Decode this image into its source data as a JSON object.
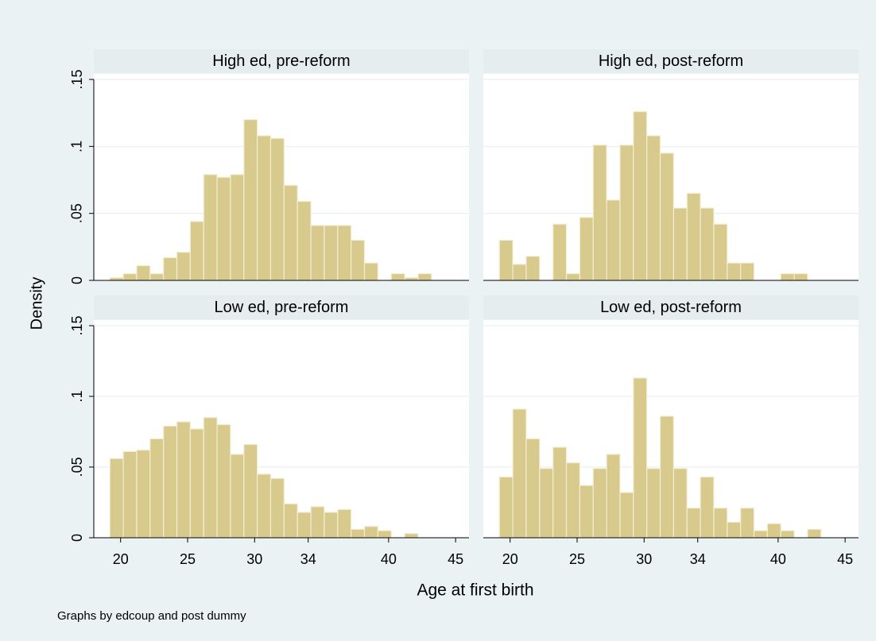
{
  "y_label": "Density",
  "x_label": "Age at first birth",
  "note": "Graphs by edcoup and post dummy",
  "chart_data": [
    {
      "type": "histogram",
      "title": "High ed, pre-reform",
      "color": "#d8c98d",
      "grid": true,
      "bins": [
        19.2,
        20.2,
        21.2,
        22.2,
        23.2,
        24.2,
        25.2,
        26.2,
        27.2,
        28.2,
        29.2,
        30.2,
        31.2,
        32.2,
        33.2,
        34.2,
        35.2,
        36.2,
        37.2,
        38.2,
        39.2,
        40.2,
        41.2,
        42.2,
        43.2
      ],
      "values": [
        0.002,
        0.005,
        0.011,
        0.005,
        0.017,
        0.021,
        0.044,
        0.079,
        0.077,
        0.079,
        0.12,
        0.108,
        0.106,
        0.071,
        0.059,
        0.041,
        0.041,
        0.041,
        0.03,
        0.013,
        0,
        0.005,
        0.002,
        0.005
      ],
      "xlim": [
        18,
        46
      ],
      "ylim": [
        0,
        0.15
      ],
      "yticks": [
        0,
        {
          "value": 0.05,
          "label": ".05"
        },
        {
          "value": 0.1,
          "label": ".1"
        },
        {
          "value": 0.15,
          "label": ".15"
        }
      ]
    },
    {
      "type": "histogram",
      "title": "High ed, post-reform",
      "color": "#d8c98d",
      "grid": true,
      "bins": [
        19.2,
        20.2,
        21.2,
        22.2,
        23.2,
        24.2,
        25.2,
        26.2,
        27.2,
        28.2,
        29.2,
        30.2,
        31.2,
        32.2,
        33.2,
        34.2,
        35.2,
        36.2,
        37.2,
        38.2,
        39.2,
        40.2,
        41.2,
        42.2,
        43.2
      ],
      "values": [
        0.03,
        0.012,
        0.018,
        0,
        0.042,
        0.005,
        0.047,
        0.101,
        0.06,
        0.101,
        0.126,
        0.108,
        0.095,
        0.054,
        0.065,
        0.054,
        0.042,
        0.013,
        0.013,
        0,
        0,
        0.005,
        0.005,
        0
      ],
      "xlim": [
        18,
        46
      ],
      "ylim": [
        0,
        0.15
      ],
      "yticks": [
        0,
        0.05,
        0.1,
        0.15
      ]
    },
    {
      "type": "histogram",
      "title": "Low ed, pre-reform",
      "color": "#d8c98d",
      "grid": true,
      "bins": [
        19.2,
        20.2,
        21.2,
        22.2,
        23.2,
        24.2,
        25.2,
        26.2,
        27.2,
        28.2,
        29.2,
        30.2,
        31.2,
        32.2,
        33.2,
        34.2,
        35.2,
        36.2,
        37.2,
        38.2,
        39.2,
        40.2,
        41.2,
        42.2,
        43.2
      ],
      "values": [
        0.056,
        0.061,
        0.062,
        0.07,
        0.079,
        0.082,
        0.077,
        0.085,
        0.08,
        0.059,
        0.066,
        0.045,
        0.042,
        0.024,
        0.018,
        0.022,
        0.018,
        0.02,
        0.006,
        0.008,
        0.005,
        0,
        0.003,
        0
      ],
      "xlim": [
        18,
        46
      ],
      "ylim": [
        0,
        0.15
      ],
      "yticks": [
        0,
        {
          "value": 0.05,
          "label": ".05"
        },
        {
          "value": 0.1,
          "label": ".1"
        },
        {
          "value": 0.15,
          "label": ".15"
        }
      ],
      "xticks": [
        20,
        25,
        30,
        34,
        40,
        45
      ]
    },
    {
      "type": "histogram",
      "title": "Low ed, post-reform",
      "color": "#d8c98d",
      "grid": true,
      "bins": [
        19.2,
        20.2,
        21.2,
        22.2,
        23.2,
        24.2,
        25.2,
        26.2,
        27.2,
        28.2,
        29.2,
        30.2,
        31.2,
        32.2,
        33.2,
        34.2,
        35.2,
        36.2,
        37.2,
        38.2,
        39.2,
        40.2,
        41.2,
        42.2,
        43.2
      ],
      "values": [
        0.043,
        0.091,
        0.07,
        0.049,
        0.064,
        0.053,
        0.037,
        0.049,
        0.059,
        0.032,
        0.113,
        0.049,
        0.086,
        0.049,
        0.021,
        0.043,
        0.021,
        0.011,
        0.021,
        0.005,
        0.01,
        0.005,
        0,
        0.006
      ],
      "xlim": [
        18,
        46
      ],
      "ylim": [
        0,
        0.15
      ],
      "yticks": [
        0,
        0.05,
        0.1,
        0.15
      ],
      "xticks": [
        20,
        25,
        30,
        34,
        40,
        45
      ]
    }
  ]
}
